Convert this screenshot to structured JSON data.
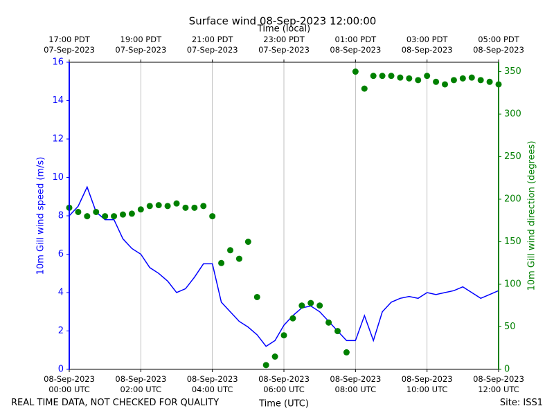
{
  "chart_data": {
    "type": "line",
    "title": "Surface wind 08-Sep-2023 12:00:00",
    "x2label": "Time (local)",
    "xlabel": "Time (UTC)",
    "ylabel": "10m Gill wind speed (m/s)",
    "y2label": "10m Gill wind direction (degrees)",
    "note": "REAL TIME DATA, NOT CHECKED FOR QUALITY",
    "site": "Site: ISS1",
    "grid": "x",
    "xlim": [
      "08-Sep-2023 00:00",
      "08-Sep-2023 12:00"
    ],
    "xticks": [
      {
        "value": "08-Sep-2023 00:00",
        "label": "08-Sep-2023\n00:00 UTC"
      },
      {
        "value": "08-Sep-2023 02:00",
        "label": "08-Sep-2023\n02:00 UTC"
      },
      {
        "value": "08-Sep-2023 04:00",
        "label": "08-Sep-2023\n04:00 UTC"
      },
      {
        "value": "08-Sep-2023 06:00",
        "label": "08-Sep-2023\n06:00 UTC"
      },
      {
        "value": "08-Sep-2023 08:00",
        "label": "08-Sep-2023\n08:00 UTC"
      },
      {
        "value": "08-Sep-2023 10:00",
        "label": "08-Sep-2023\n10:00 UTC"
      },
      {
        "value": "08-Sep-2023 12:00",
        "label": "08-Sep-2023\n12:00 UTC"
      }
    ],
    "x2ticks": [
      {
        "value": "08-Sep-2023 00:00",
        "label": "17:00 PDT\n07-Sep-2023"
      },
      {
        "value": "08-Sep-2023 02:00",
        "label": "19:00 PDT\n07-Sep-2023"
      },
      {
        "value": "08-Sep-2023 04:00",
        "label": "21:00 PDT\n07-Sep-2023"
      },
      {
        "value": "08-Sep-2023 06:00",
        "label": "23:00 PDT\n07-Sep-2023"
      },
      {
        "value": "08-Sep-2023 08:00",
        "label": "01:00 PDT\n08-Sep-2023"
      },
      {
        "value": "08-Sep-2023 10:00",
        "label": "03:00 PDT\n08-Sep-2023"
      },
      {
        "value": "08-Sep-2023 12:00",
        "label": "05:00 PDT\n08-Sep-2023"
      }
    ],
    "ylim": [
      0,
      16
    ],
    "yticks": [
      0,
      2,
      4,
      6,
      8,
      10,
      12,
      14,
      16
    ],
    "y2lim": [
      0,
      361
    ],
    "y2ticks": [
      0,
      50,
      100,
      150,
      200,
      250,
      300,
      350
    ],
    "ycolor": "#0000ff",
    "y2color": "#008000",
    "x": [
      "08-Sep-2023 00:00",
      "08-Sep-2023 00:15",
      "08-Sep-2023 00:30",
      "08-Sep-2023 00:45",
      "08-Sep-2023 01:00",
      "08-Sep-2023 01:15",
      "08-Sep-2023 01:30",
      "08-Sep-2023 01:45",
      "08-Sep-2023 02:00",
      "08-Sep-2023 02:15",
      "08-Sep-2023 02:30",
      "08-Sep-2023 02:45",
      "08-Sep-2023 03:00",
      "08-Sep-2023 03:15",
      "08-Sep-2023 03:30",
      "08-Sep-2023 03:45",
      "08-Sep-2023 04:00",
      "08-Sep-2023 04:15",
      "08-Sep-2023 04:30",
      "08-Sep-2023 04:45",
      "08-Sep-2023 05:00",
      "08-Sep-2023 05:15",
      "08-Sep-2023 05:30",
      "08-Sep-2023 05:45",
      "08-Sep-2023 06:00",
      "08-Sep-2023 06:15",
      "08-Sep-2023 06:30",
      "08-Sep-2023 06:45",
      "08-Sep-2023 07:00",
      "08-Sep-2023 07:15",
      "08-Sep-2023 07:30",
      "08-Sep-2023 07:45",
      "08-Sep-2023 08:00",
      "08-Sep-2023 08:15",
      "08-Sep-2023 08:30",
      "08-Sep-2023 08:45",
      "08-Sep-2023 09:00",
      "08-Sep-2023 09:15",
      "08-Sep-2023 09:30",
      "08-Sep-2023 09:45",
      "08-Sep-2023 10:00",
      "08-Sep-2023 10:15",
      "08-Sep-2023 10:30",
      "08-Sep-2023 10:45",
      "08-Sep-2023 11:00",
      "08-Sep-2023 11:15",
      "08-Sep-2023 11:30",
      "08-Sep-2023 11:45",
      "08-Sep-2023 12:00"
    ],
    "series": [
      {
        "name": "10m Gill wind speed",
        "color": "#0000ff",
        "style": "line",
        "axis": "y",
        "values": [
          8.0,
          8.5,
          9.5,
          8.2,
          7.8,
          7.8,
          6.8,
          6.3,
          6.0,
          5.3,
          5.0,
          4.6,
          4.0,
          4.2,
          4.8,
          5.5,
          5.5,
          3.5,
          3.0,
          2.5,
          2.2,
          1.8,
          1.2,
          1.5,
          2.3,
          2.8,
          3.2,
          3.3,
          3.0,
          2.5,
          2.0,
          1.5,
          1.5,
          2.8,
          1.5,
          3.0,
          3.5,
          3.7,
          3.8,
          3.7,
          4.0,
          3.9,
          4.0,
          4.1,
          4.3,
          4.0,
          3.7,
          3.9,
          4.1
        ]
      },
      {
        "name": "10m Gill wind direction",
        "color": "#008000",
        "style": "points",
        "axis": "y2",
        "values": [
          190,
          185,
          180,
          185,
          180,
          180,
          182,
          183,
          188,
          192,
          193,
          192,
          195,
          190,
          190,
          192,
          180,
          125,
          140,
          130,
          150,
          85,
          5,
          15,
          40,
          60,
          75,
          78,
          75,
          55,
          45,
          20,
          350,
          330,
          345,
          345,
          345,
          343,
          342,
          340,
          345,
          338,
          335,
          340,
          342,
          343,
          340,
          338,
          335
        ]
      }
    ]
  }
}
